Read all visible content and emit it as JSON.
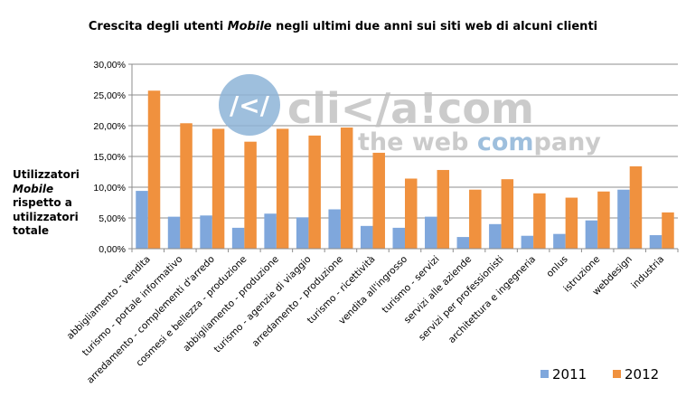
{
  "chart_data": {
    "type": "bar",
    "title_pre": "Crescita degli utenti ",
    "title_em": "Mobile",
    "title_post": " negli ultimi due anni sui siti web di alcuni clienti",
    "ylabel_line1": "Utilizzatori",
    "ylabel_line2": "Mobile",
    "ylabel_line3": "rispetto a",
    "ylabel_line4": "utilizzatori",
    "ylabel_line5": "totale",
    "ylim": [
      0,
      0.3
    ],
    "yticks": [
      0,
      0.05,
      0.1,
      0.15,
      0.2,
      0.25,
      0.3
    ],
    "ytick_labels": [
      "0,00%",
      "5,00%",
      "10,00%",
      "15,00%",
      "20,00%",
      "25,00%",
      "30,00%"
    ],
    "grid": true,
    "legend_position": "bottom-right",
    "categories": [
      "abbigliamento - vendita",
      "turismo - portale informativo",
      "arredamento - complementi d'arredo",
      "cosmesi e bellezza - produzione",
      "abbigliamento - produzione",
      "turismo - agenzie di viaggio",
      "arredamento - produzione",
      "turismo - ricettività",
      "vendita all'ingrosso",
      "turismo - servizi",
      "servizi alle aziende",
      "servizi per professionisti",
      "architettura e ingegneria",
      "onlus",
      "istruzione",
      "webdesign",
      "industria"
    ],
    "series": [
      {
        "name": "2011",
        "color": "#7fa7dc",
        "values": [
          0.094,
          0.052,
          0.054,
          0.034,
          0.057,
          0.051,
          0.064,
          0.037,
          0.034,
          0.052,
          0.019,
          0.04,
          0.021,
          0.024,
          0.046,
          0.096,
          0.022
        ]
      },
      {
        "name": "2012",
        "color": "#f0913e",
        "values": [
          0.257,
          0.204,
          0.195,
          0.174,
          0.195,
          0.184,
          0.197,
          0.156,
          0.114,
          0.128,
          0.096,
          0.113,
          0.09,
          0.083,
          0.093,
          0.134,
          0.059
        ]
      }
    ]
  },
  "watermark": {
    "logo_mark": "/</",
    "brand": "cli</a!com",
    "tagline_pre": "the web ",
    "tagline_em": "com",
    "tagline_post": "pany",
    "color_light": "#c2c2c2",
    "color_blue": "#8eb4d8"
  }
}
